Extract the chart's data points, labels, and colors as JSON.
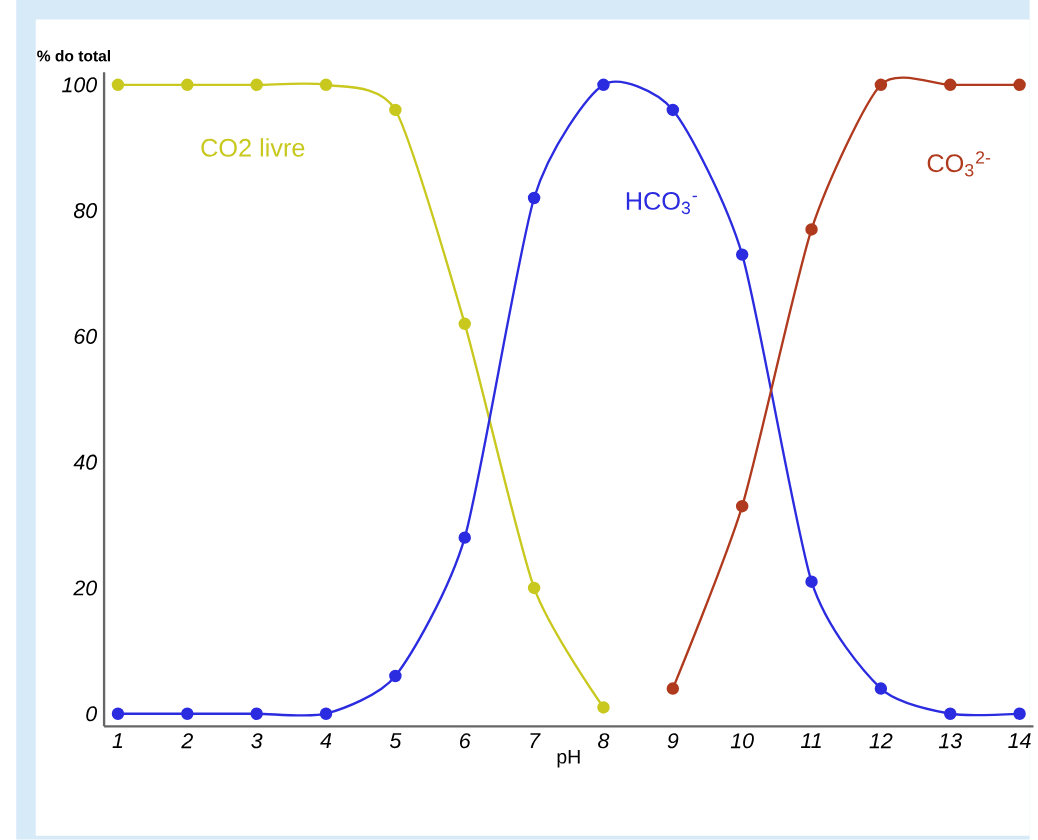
{
  "chart_data": {
    "type": "line",
    "ylabel": "% do total",
    "xlabel": "pH",
    "x": [
      1,
      2,
      3,
      4,
      5,
      6,
      7,
      8,
      9,
      10,
      11,
      12,
      13,
      14
    ],
    "series": [
      {
        "name": "CO2 livre",
        "color": "#c8c81e",
        "values": [
          100,
          100,
          100,
          100,
          96,
          62,
          20,
          1,
          null,
          null,
          null,
          null,
          null,
          null
        ]
      },
      {
        "name": "HCO$_{3}$$^{-}$",
        "color": "#2b2be0",
        "values": [
          0,
          0,
          0,
          0,
          6,
          28,
          82,
          100,
          96,
          73,
          21,
          4,
          0,
          0
        ]
      },
      {
        "name": "CO$_{3}$$^{2-}$",
        "color": "#b03a1e",
        "values": [
          null,
          null,
          null,
          null,
          null,
          null,
          null,
          null,
          4,
          33,
          77,
          100,
          100,
          100
        ]
      }
    ],
    "xlim": [
      0.8,
      14.2
    ],
    "ylim": [
      -2,
      102
    ],
    "xticks": [
      1,
      2,
      3,
      4,
      5,
      6,
      7,
      8,
      9,
      10,
      11,
      12,
      13,
      14
    ],
    "yticks": [
      0,
      20,
      40,
      60,
      80,
      100
    ],
    "grid": false,
    "legend": false,
    "marker": "circle",
    "line_style": "solid"
  }
}
